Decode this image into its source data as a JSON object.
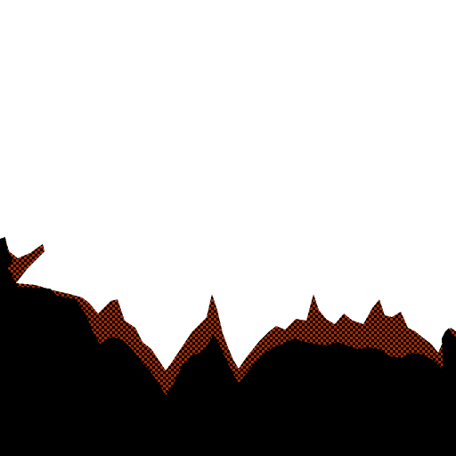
{
  "scene": {
    "type": "pixel-art-terrain",
    "description_free": true,
    "colors": {
      "sky": "#ffffff",
      "ground": "#000000",
      "rust": "#a52a00",
      "rust_dark": "#7a1f00"
    },
    "elements": [
      "bush-silhouette",
      "ground-mass",
      "spiky-foliage-edge"
    ]
  }
}
